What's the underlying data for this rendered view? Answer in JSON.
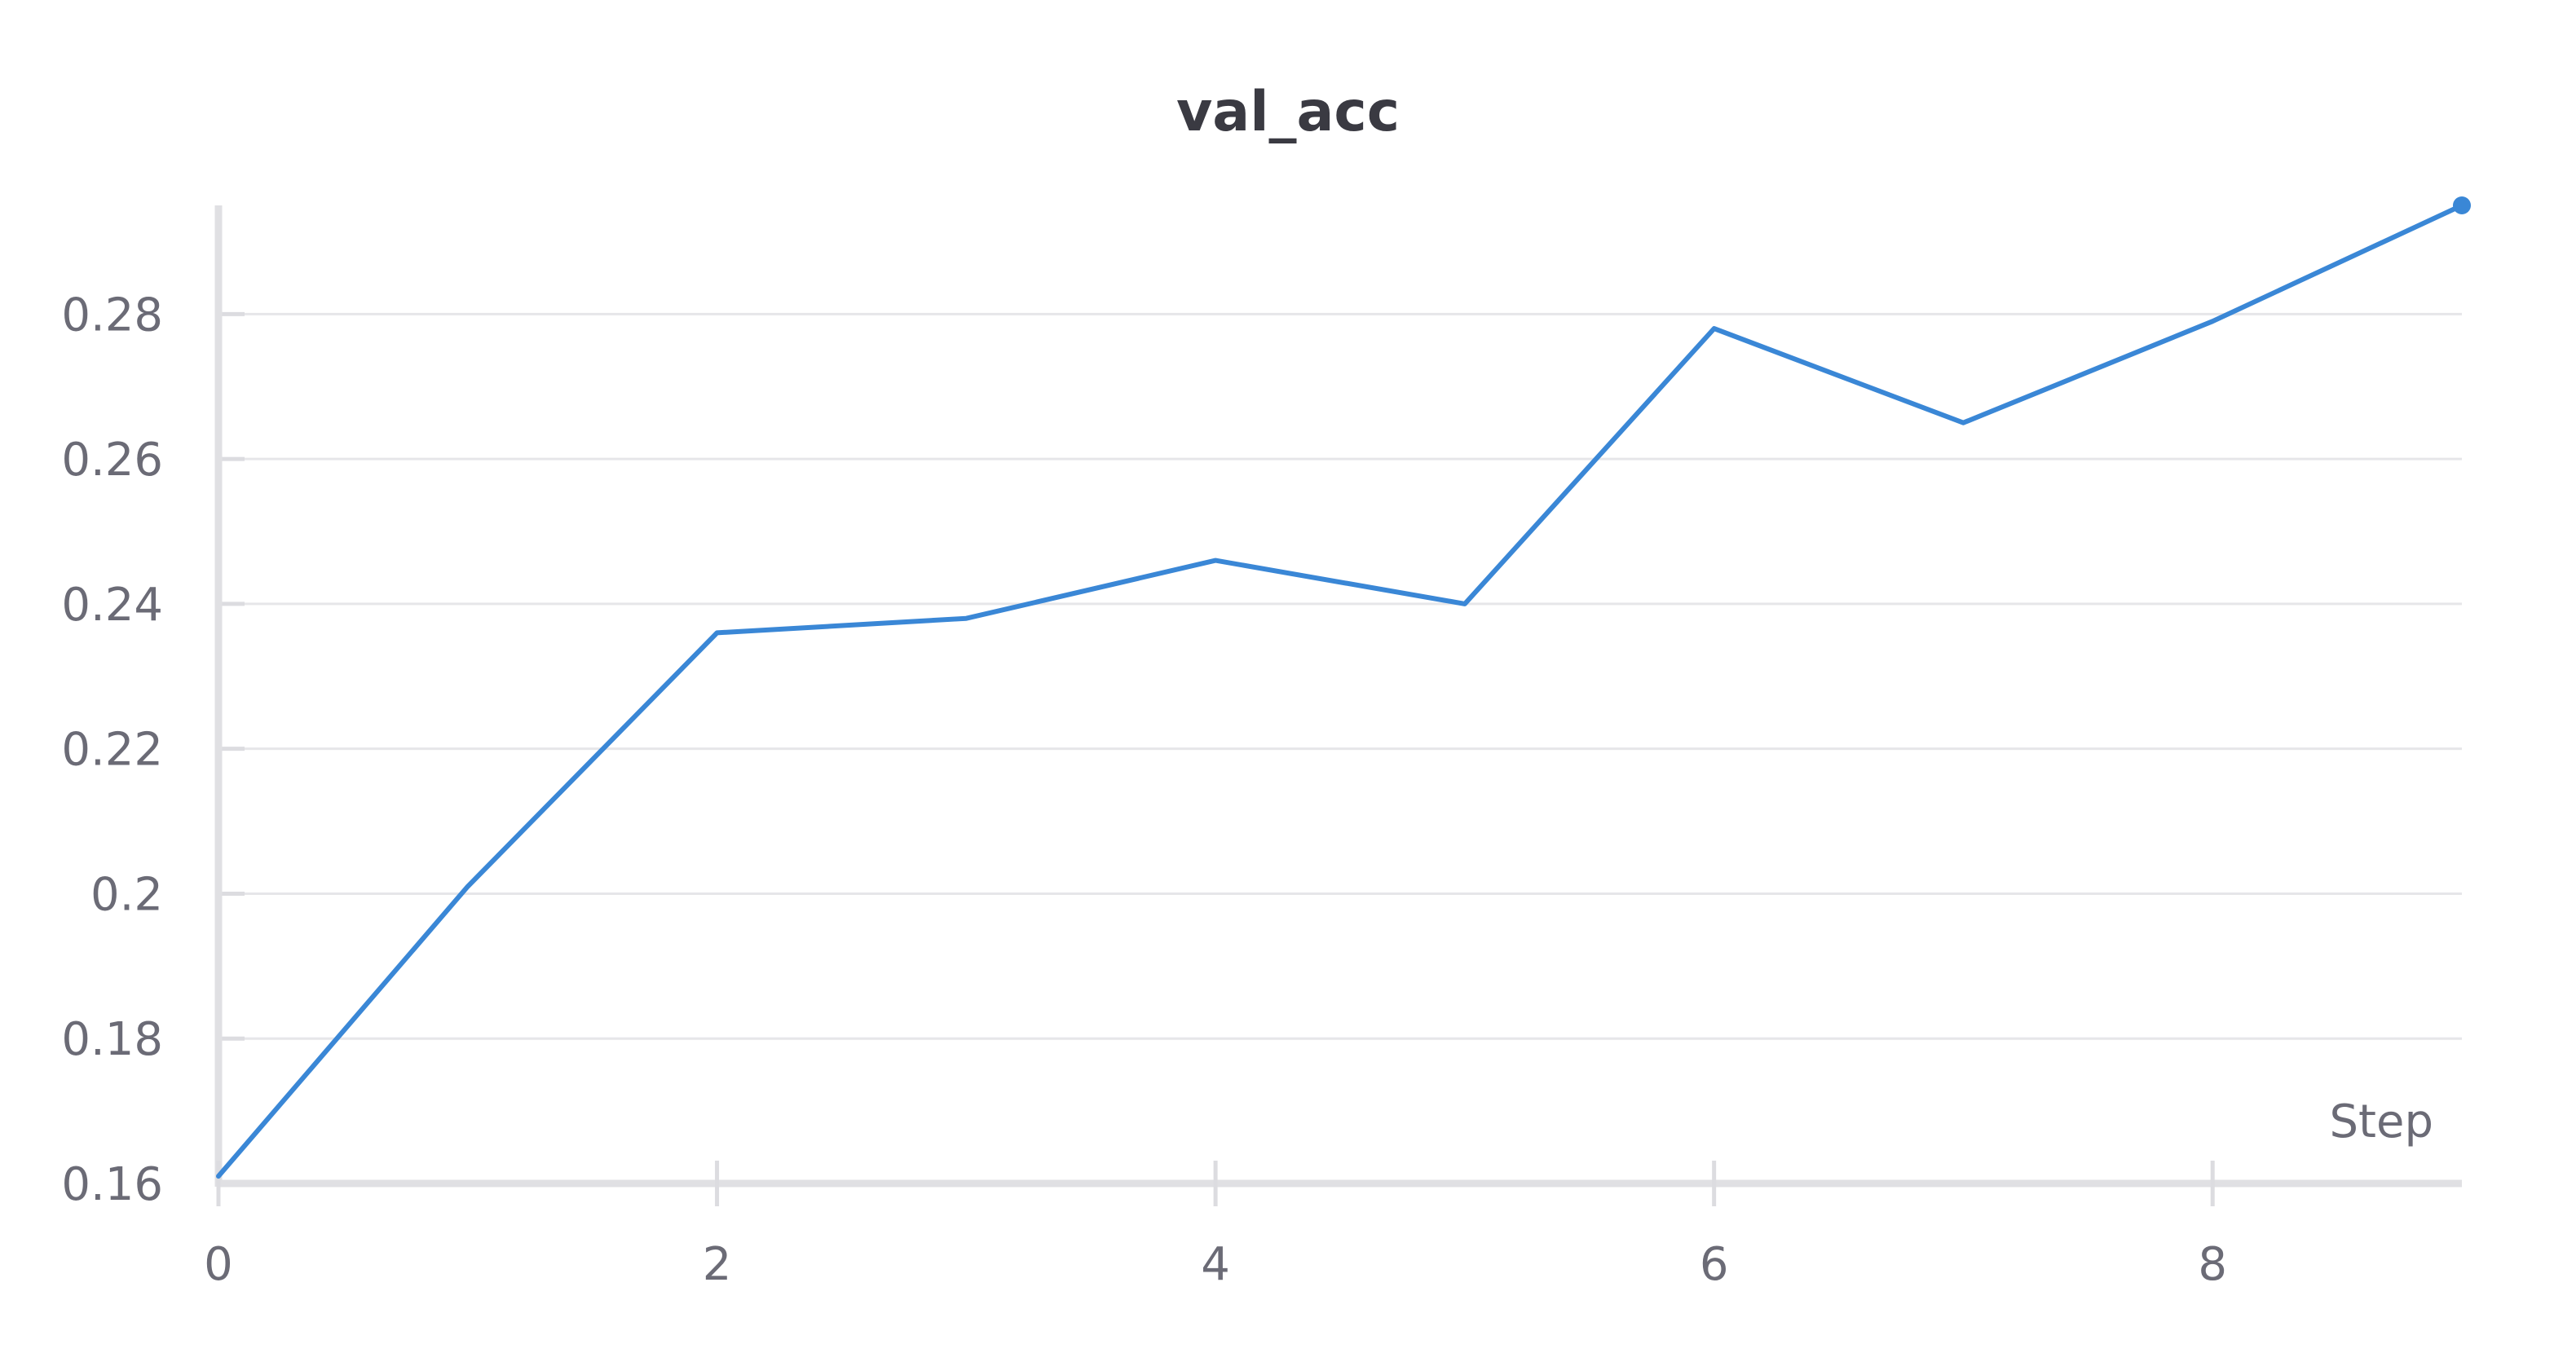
{
  "chart_data": {
    "type": "line",
    "title": "val_acc",
    "xlabel": "Step",
    "ylabel": "",
    "xlim": [
      0,
      9
    ],
    "ylim": [
      0.16,
      0.295
    ],
    "x_ticks": [
      0,
      2,
      4,
      6,
      8
    ],
    "x_tick_labels": [
      "0",
      "2",
      "4",
      "6",
      "8"
    ],
    "y_ticks": [
      0.16,
      0.18,
      0.2,
      0.22,
      0.24,
      0.26,
      0.28
    ],
    "y_tick_labels": [
      "0.16",
      "0.18",
      "0.2",
      "0.22",
      "0.24",
      "0.26",
      "0.28"
    ],
    "grid": true,
    "series": [
      {
        "color": "#3a87d6",
        "x": [
          0,
          1,
          2,
          3,
          4,
          5,
          6,
          7,
          8,
          9
        ],
        "y": [
          0.161,
          0.201,
          0.236,
          0.238,
          0.246,
          0.24,
          0.278,
          0.265,
          0.279,
          0.295
        ]
      }
    ]
  }
}
